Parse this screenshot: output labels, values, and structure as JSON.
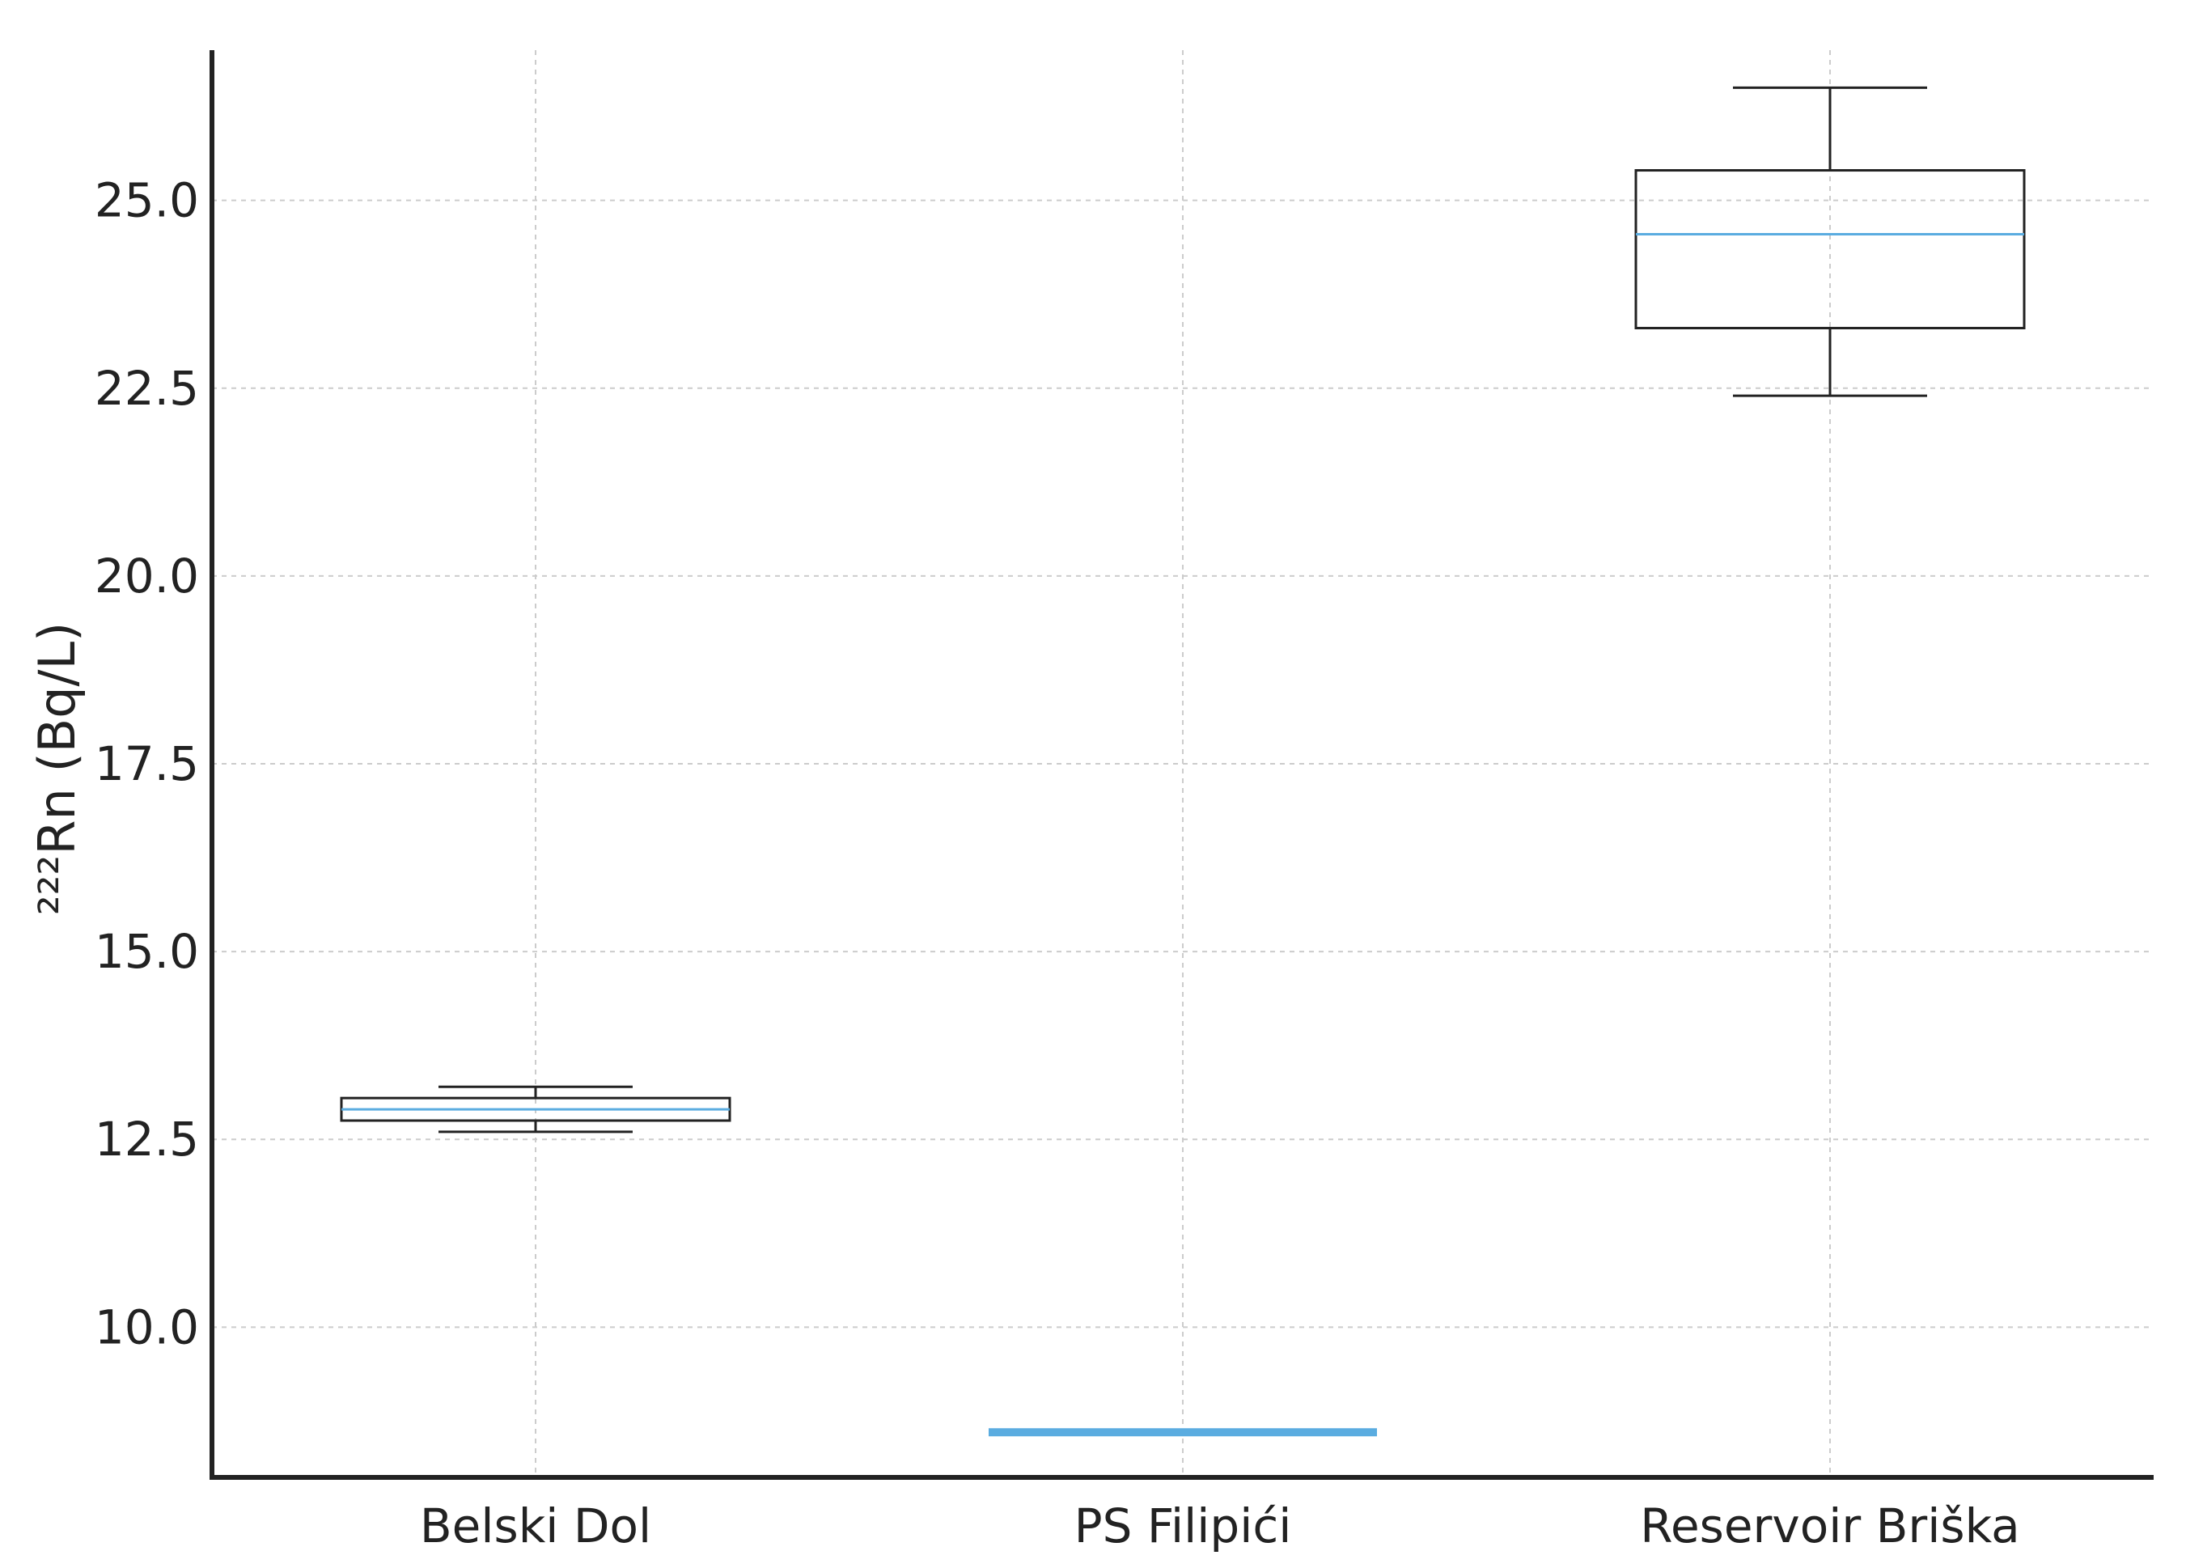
{
  "chart_data": {
    "type": "box",
    "title": "",
    "xlabel": "",
    "ylabel": "²²²Rn (Bq/L)",
    "ylim": [
      8.0,
      27.0
    ],
    "yticks": [
      10.0,
      12.5,
      15.0,
      17.5,
      20.0,
      22.5,
      25.0
    ],
    "ytick_labels": [
      "10.0",
      "12.5",
      "15.0",
      "17.5",
      "20.0",
      "22.5",
      "25.0"
    ],
    "grid": true,
    "categories": [
      "Belski Dol",
      "PS Filipići",
      "Reservoir Briška"
    ],
    "boxes": [
      {
        "category": "Belski Dol",
        "whisker_low": 12.6,
        "q1": 12.75,
        "median": 12.9,
        "q3": 13.05,
        "whisker_high": 13.2
      },
      {
        "category": "PS Filipići",
        "whisker_low": 8.6,
        "q1": 8.6,
        "median": 8.6,
        "q3": 8.6,
        "whisker_high": 8.6
      },
      {
        "category": "Reservoir Briška",
        "whisker_low": 22.4,
        "q1": 23.3,
        "median": 24.55,
        "q3": 25.4,
        "whisker_high": 26.5
      }
    ],
    "colors": {
      "box_edge": "#222222",
      "median": "#5aace0",
      "grid": "#cccccc",
      "axis": "#222222"
    }
  }
}
